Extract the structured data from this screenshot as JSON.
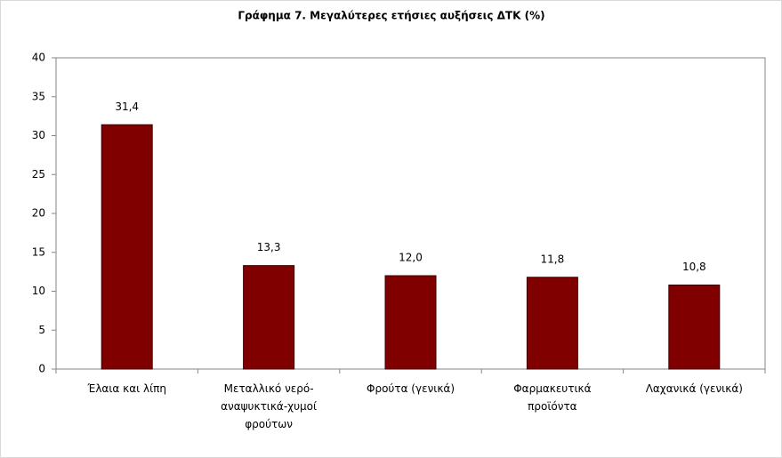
{
  "chart_data": {
    "type": "bar",
    "title": "Γράφημα 7. Μεγαλύτερες ετήσιες αυξήσεις ΔΤΚ (%)",
    "categories": [
      "Έλαια και λίπη",
      "Μεταλλικό νερό-αναψυκτικά-χυμοί φρούτων",
      "Φρούτα (γενικά)",
      "Φαρμακευτικά προϊόντα",
      "Λαχανικά (γενικά)"
    ],
    "values": [
      31.4,
      13.3,
      12.0,
      11.8,
      10.8
    ],
    "value_labels": [
      "31,4",
      "13,3",
      "12,0",
      "11,8",
      "10,8"
    ],
    "color": "#800000",
    "ylim": [
      0,
      40
    ],
    "yticks": [
      0,
      5,
      10,
      15,
      20,
      25,
      30,
      35,
      40
    ],
    "grid": false
  }
}
